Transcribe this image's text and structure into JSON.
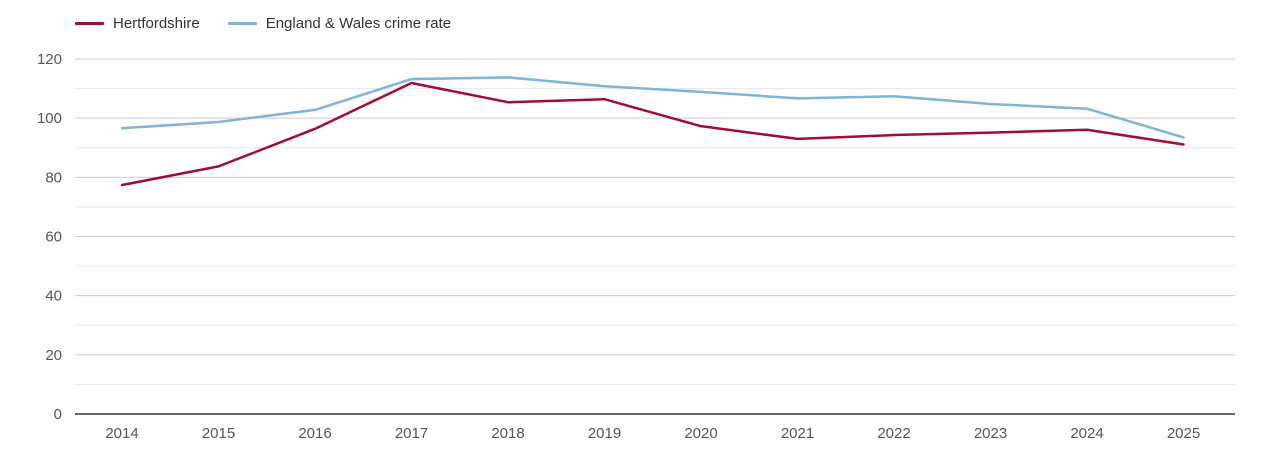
{
  "legend": {
    "items": [
      {
        "label": "Hertfordshire",
        "color": "#a00c33"
      },
      {
        "label": "England & Wales crime rate",
        "color": "#7fb3d8"
      }
    ]
  },
  "chart_data": {
    "type": "line",
    "x": [
      2014,
      2015,
      2016,
      2017,
      2018,
      2019,
      2020,
      2021,
      2022,
      2023,
      2024,
      2025
    ],
    "series": [
      {
        "name": "Hertfordshire",
        "color": "#a00c33",
        "values": [
          77.4,
          83.7,
          96.4,
          111.9,
          105.4,
          106.4,
          97.3,
          93.0,
          94.3,
          95.1,
          96.1,
          91.1
        ]
      },
      {
        "name": "England & Wales crime rate",
        "color": "#7fb3d8",
        "values": [
          96.6,
          98.7,
          102.8,
          113.2,
          113.8,
          110.8,
          108.9,
          106.7,
          107.4,
          104.8,
          103.2,
          93.5
        ]
      }
    ],
    "title": "",
    "xlabel": "",
    "ylabel": "",
    "ylim": [
      0,
      120
    ],
    "ytick_major_step": 20,
    "ytick_minor_step": 10,
    "grid": true,
    "legend_position": "top-left"
  },
  "style_colors": {
    "major_grid": "#cccccc",
    "minor_grid": "#e6e6e6",
    "axis_line": "#333333",
    "tick_text": "#555555"
  }
}
